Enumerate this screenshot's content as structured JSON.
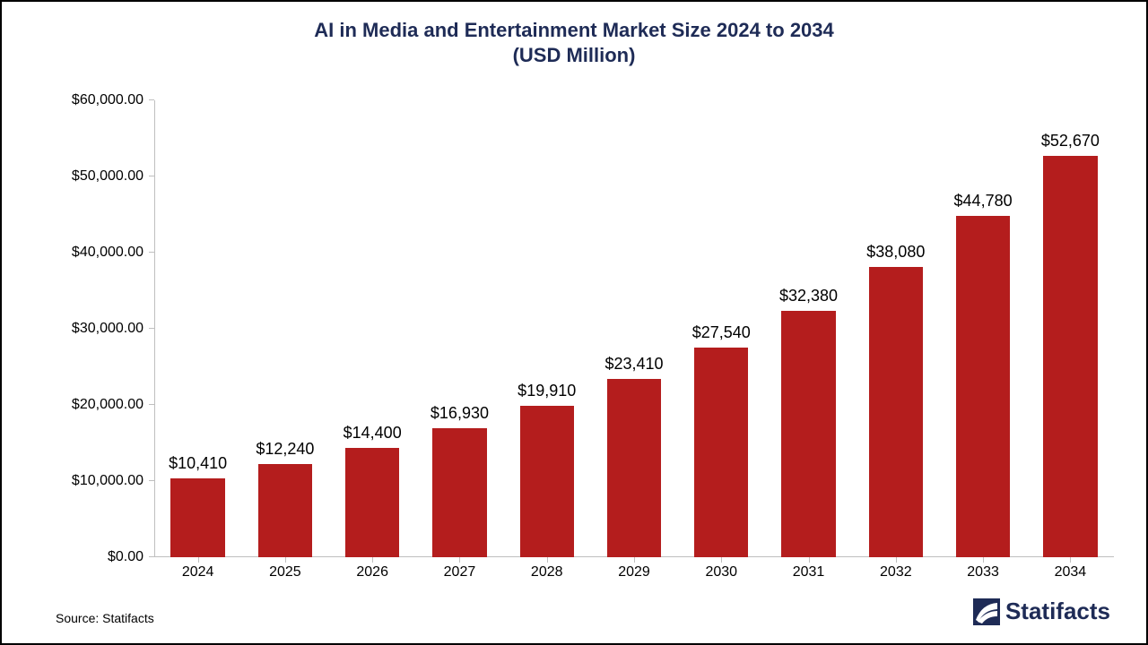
{
  "chart": {
    "type": "bar",
    "title_line1": "AI in Media and Entertainment Market Size 2024 to 2034",
    "title_line2": "(USD Million)",
    "title_color": "#1e2b56",
    "title_fontsize_pt": 22,
    "background_color": "#ffffff",
    "border_color": "#000000",
    "categories": [
      "2024",
      "2025",
      "2026",
      "2027",
      "2028",
      "2029",
      "2030",
      "2031",
      "2032",
      "2033",
      "2034"
    ],
    "values": [
      10410,
      12240,
      14400,
      16930,
      19910,
      23410,
      27540,
      32380,
      38080,
      44780,
      52670
    ],
    "value_labels": [
      "$10,410",
      "$12,240",
      "$14,400",
      "$16,930",
      "$19,910",
      "$23,410",
      "$27,540",
      "$32,380",
      "$38,080",
      "$44,780",
      "$52,670"
    ],
    "bar_color": "#b41d1d",
    "bar_width_ratio": 0.62,
    "ylim": [
      0,
      60000
    ],
    "ytick_step": 10000,
    "ytick_labels": [
      "$0.00",
      "$10,000.00",
      "$20,000.00",
      "$30,000.00",
      "$40,000.00",
      "$50,000.00",
      "$60,000.00"
    ],
    "y_label_fontsize_pt": 16,
    "x_label_fontsize_pt": 16,
    "bar_label_fontsize_pt": 18,
    "axis_line_color": "#bfbfbf",
    "grid": false,
    "text_color": "#000000"
  },
  "source_text": "Source: Statifacts",
  "source_fontsize_pt": 14,
  "brand": {
    "name": "Statifacts",
    "color": "#1e2b56",
    "fontsize_pt": 26
  }
}
